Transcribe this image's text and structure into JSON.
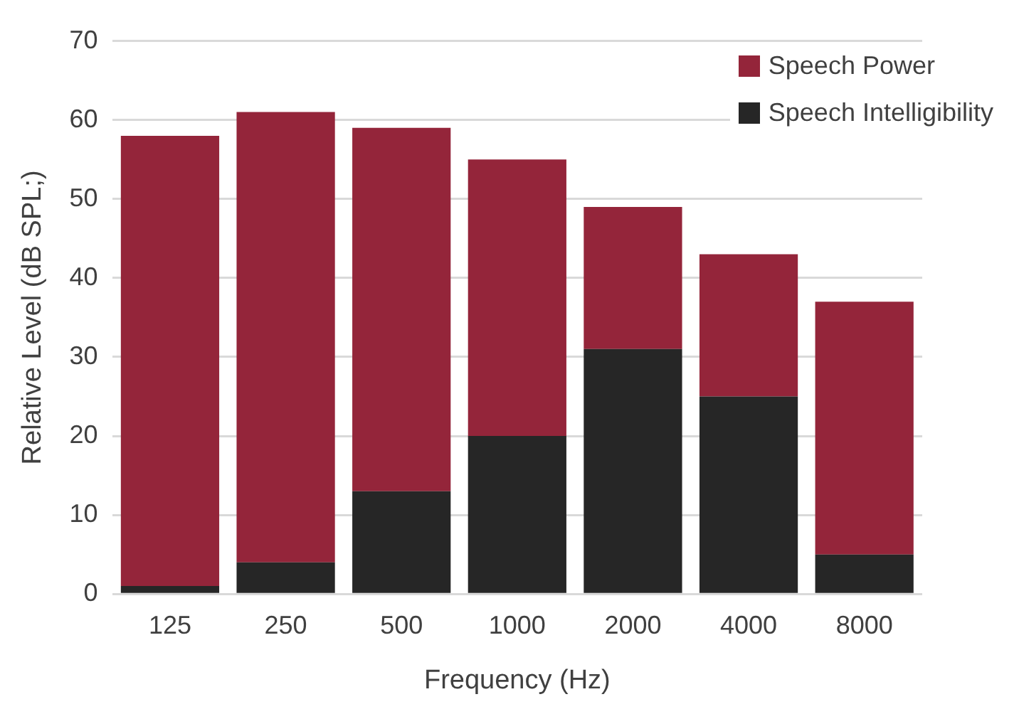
{
  "chart_data": {
    "type": "bar",
    "stacked": true,
    "xlabel": "Frequency (Hz)",
    "ylabel": "Relative Level (dB SPL;)",
    "categories": [
      "125",
      "250",
      "500",
      "1000",
      "2000",
      "4000",
      "8000"
    ],
    "series": [
      {
        "name": "Speech Intelligibility",
        "color": "#262626",
        "values": [
          1,
          4,
          13,
          20,
          31,
          25,
          5
        ]
      },
      {
        "name": "Speech Power",
        "color": "#94253a",
        "values": [
          57,
          57,
          46,
          35,
          18,
          18,
          32
        ]
      }
    ],
    "ylim": [
      0,
      70
    ],
    "yticks": [
      0,
      10,
      20,
      30,
      40,
      50,
      60,
      70
    ],
    "grid": "y",
    "legend": "top right"
  }
}
